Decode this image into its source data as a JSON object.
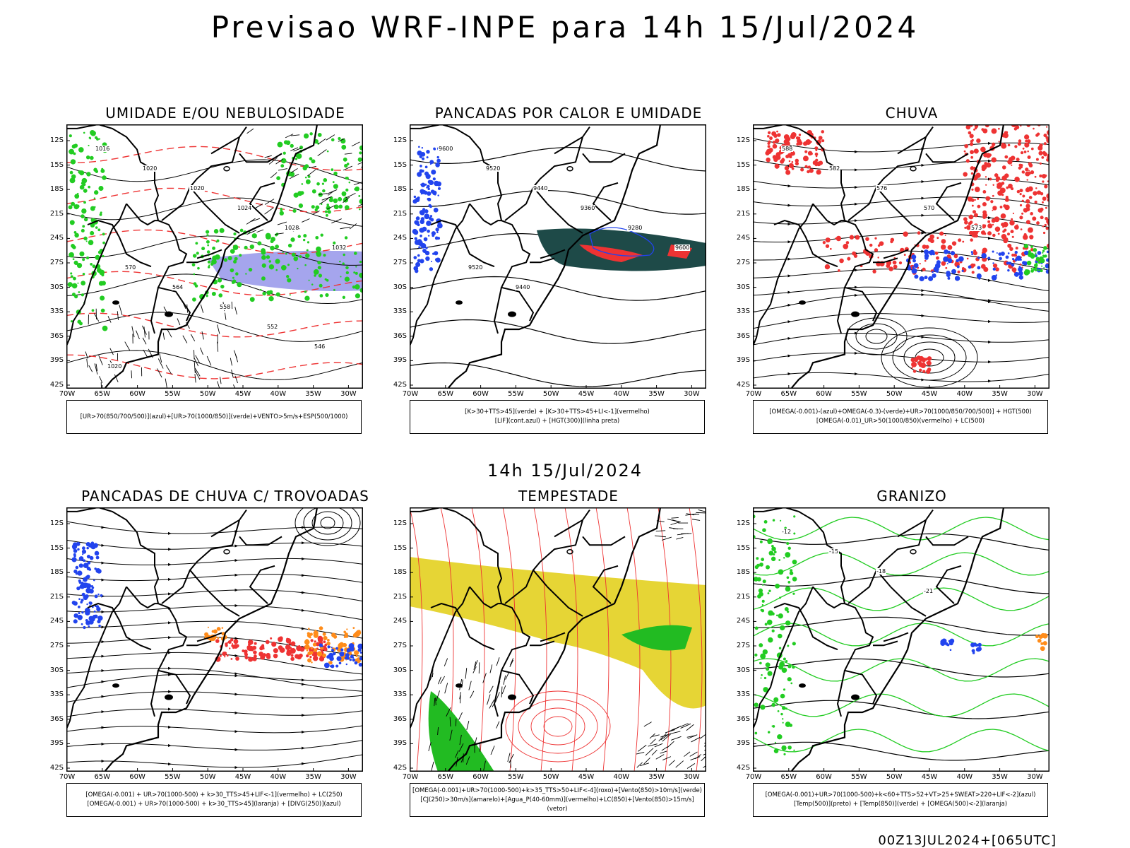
{
  "title": "Previsao WRF-INPE  para 14h 15/Jul/2024",
  "middle_title": "14h 15/Jul/2024",
  "footer": "00Z13JUL2024+[065UTC]",
  "lat_labels": [
    "12S",
    "15S",
    "18S",
    "21S",
    "24S",
    "27S",
    "30S",
    "33S",
    "36S",
    "39S",
    "42S"
  ],
  "lon_labels": [
    "70W",
    "65W",
    "60W",
    "55W",
    "50W",
    "45W",
    "40W",
    "35W",
    "30W"
  ],
  "colors": {
    "green": "#22cc22",
    "red": "#ee3333",
    "blue": "#2244ee",
    "yellow": "#e6d535",
    "teal": "#1e4a48",
    "orange": "#ff8c1a",
    "lavender": "#8f8fe8"
  },
  "panels": [
    {
      "title": "UMIDADE E/OU NEBULOSIDADE",
      "legend": [
        "[UR>70(850/700/500)](azul)+[UR>70(1000/850)](verde)+VENTO>5m/s+ESP(500/1000)"
      ]
    },
    {
      "title": "PANCADAS POR CALOR E UMIDADE",
      "legend": [
        "[K>30+TTS>45](verde) + [K>30+TTS>45+LI<-1](vermelho)",
        "[LIF](cont.azul) + [HGT(300)](linha preta)"
      ]
    },
    {
      "title": "CHUVA",
      "legend": [
        "[OMEGA(-0.001)-(azul)+OMEGA(-0.3)-(verde)+UR>70(1000/850/700/500)] + HGT(500)",
        "[OMEGA(-0.01)_UR>50(1000/850)(vermelho) + LC(500)"
      ]
    },
    {
      "title": "PANCADAS DE CHUVA C/ TROVOADAS",
      "legend": [
        "[OMEGA(-0.001) + UR>70(1000-500) + k>30_TTS>45+LIF<-1](vermelho) + LC(250)",
        "[OMEGA(-0.001) + UR>70(1000-500) + k>30_TTS>45](laranja) + [DIVG(250)](azul)"
      ]
    },
    {
      "title": "TEMPESTADE",
      "legend": [
        "[OMEGA(-0.001)+UR>70(1000-500)+k>35_TTS>50+LIF<-4](roxo)+[Vento(850)>10m/s](verde)",
        "[CJ(250)>30m/s](amarelo)+[Agua_P(40-60mm)](vermelho)+LC(850)+[Vento(850)>15m/s](vetor)"
      ]
    },
    {
      "title": "GRANIZO",
      "legend": [
        "[OMEGA(-0.001)+UR>70(1000-500)+k<60+TTS>52+VT>25+SWEAT>220+LIF<-2](azul)",
        "[Temp(500)](preto) + [Temp(850)](verde) + [OMEGA(500)<-2](laranja)"
      ]
    }
  ],
  "contour_labels": {
    "p1": [
      "1016",
      "1020",
      "1020",
      "1024",
      "1028",
      "1032",
      "570",
      "564",
      "558",
      "552",
      "546",
      "1020"
    ],
    "p2": [
      "9600",
      "9520",
      "9440",
      "9360",
      "9280",
      "9600",
      "9520",
      "9440"
    ],
    "p3": [
      "588",
      "582",
      "576",
      "570",
      "573"
    ],
    "p6": [
      "-12",
      "-15",
      "-18",
      "-21"
    ]
  }
}
